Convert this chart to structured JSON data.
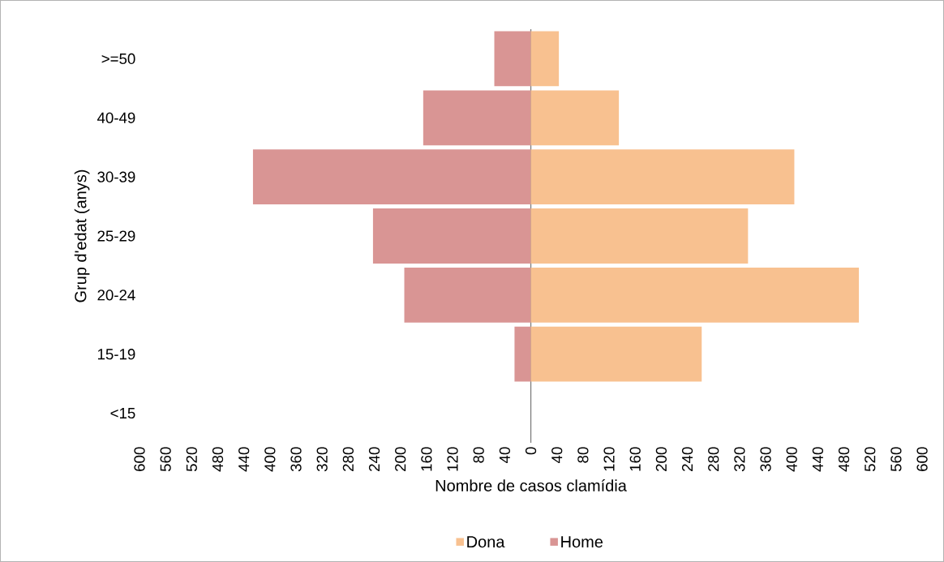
{
  "chart_data": {
    "type": "bar",
    "orientation": "horizontal",
    "xlabel": "Nombre de casos clamídia",
    "ylabel": "Grup d'edat (anys)",
    "categories": [
      ">=50",
      "40-49",
      "30-39",
      "25-29",
      "20-24",
      "15-19",
      "<15"
    ],
    "series": [
      {
        "name": "Dona",
        "color": "#f8c190",
        "values": [
          43,
          135,
          404,
          333,
          503,
          262,
          0
        ]
      },
      {
        "name": "Home",
        "color": "#d99594",
        "values": [
          -56,
          -165,
          -426,
          -242,
          -194,
          -25,
          0
        ]
      }
    ],
    "xlim": [
      -600,
      600
    ],
    "xticks": [
      {
        "value": -600,
        "label": "600"
      },
      {
        "value": -560,
        "label": "560"
      },
      {
        "value": -520,
        "label": "520"
      },
      {
        "value": -480,
        "label": "480"
      },
      {
        "value": -440,
        "label": "440"
      },
      {
        "value": -400,
        "label": "400"
      },
      {
        "value": -360,
        "label": "360"
      },
      {
        "value": -320,
        "label": "320"
      },
      {
        "value": -280,
        "label": "280"
      },
      {
        "value": -240,
        "label": "240"
      },
      {
        "value": -200,
        "label": "200"
      },
      {
        "value": -160,
        "label": "160"
      },
      {
        "value": -120,
        "label": "120"
      },
      {
        "value": -80,
        "label": "80"
      },
      {
        "value": -40,
        "label": "40"
      },
      0,
      40,
      80,
      120,
      160,
      200,
      240,
      280,
      320,
      360,
      400,
      440,
      480,
      520,
      560,
      600
    ],
    "ref_lines": [
      {
        "axis": "x",
        "value": 0,
        "color": "#7f7f7f"
      }
    ],
    "stacked": true,
    "grid": false,
    "legend": "bottom"
  }
}
